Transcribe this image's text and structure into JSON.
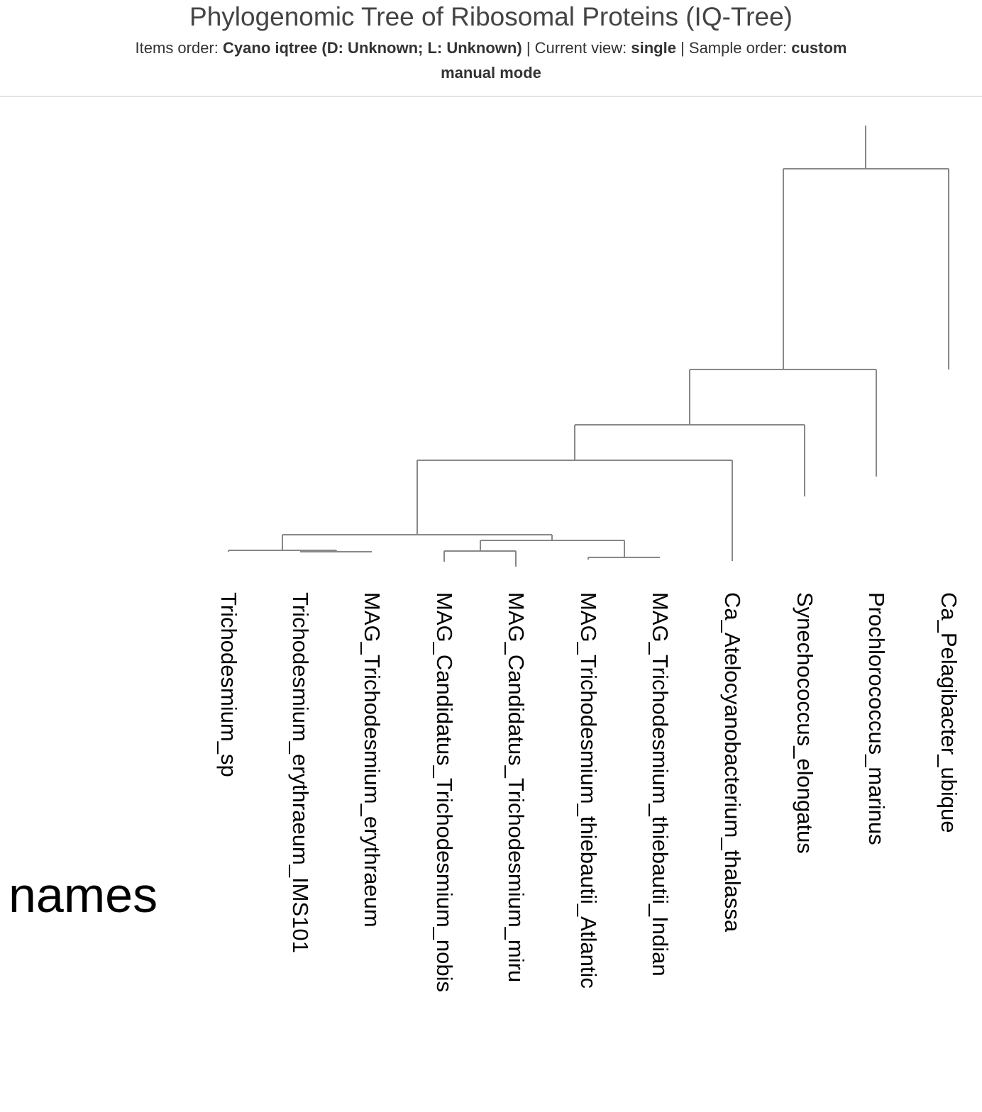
{
  "header": {
    "title": "Phylogenomic Tree of Ribosomal Proteins (IQ-Tree)",
    "items_order_label": "Items order:",
    "items_order_value": "Cyano iqtree (D: Unknown; L: Unknown)",
    "current_view_label": "| Current view:",
    "current_view_value": "single",
    "sample_order_label": "| Sample order:",
    "sample_order_value": "custom",
    "mode": "manual mode"
  },
  "tree": {
    "branch_color": "#888888",
    "leaves": [
      "Trichodesmium_sp",
      "Trichodesmium_erythraeum_IMS101",
      "MAG_Trichodesmium_erythraeum",
      "MAG_Candidatus_Trichodesmium_nobis",
      "MAG_Candidatus_Trichodesmium_miru",
      "MAG_Trichodesmium_thiebautii_Atlantic",
      "MAG_Trichodesmium_thiebautii_Indian",
      "Ca_Atelocyanobacterium_thalassa",
      "Synechococcus_elongatus",
      "Prochlorococcus_marinus",
      "Ca_Pelagibacter_ubique"
    ]
  },
  "layer": {
    "name": "names"
  }
}
